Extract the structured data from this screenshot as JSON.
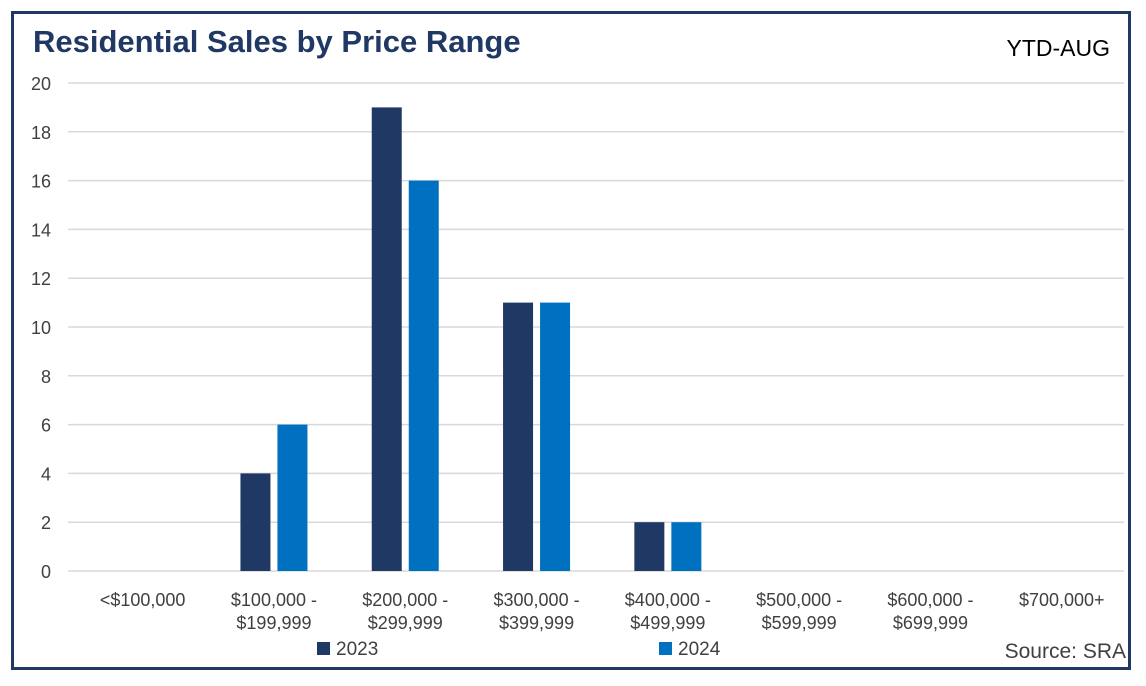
{
  "header": {
    "title": "Residential Sales by Price Range",
    "badge": "YTD-AUG"
  },
  "footer": {
    "source": "Source: SRA"
  },
  "colors": {
    "series_2023": "#1f3864",
    "series_2024": "#0070c0",
    "grid": "#d9d9d9",
    "frame": "#1f3864"
  },
  "chart_data": {
    "type": "bar",
    "title": "Residential Sales by Price Range",
    "subtitle": "YTD-AUG",
    "categories": [
      [
        "<$100,000"
      ],
      [
        "$100,000 -",
        "$199,999"
      ],
      [
        "$200,000 -",
        "$299,999"
      ],
      [
        "$300,000 -",
        "$399,999"
      ],
      [
        "$400,000 -",
        "$499,999"
      ],
      [
        "$500,000 -",
        "$599,999"
      ],
      [
        "$600,000 -",
        "$699,999"
      ],
      [
        "$700,000+"
      ]
    ],
    "series": [
      {
        "name": "2023",
        "values": [
          0,
          4,
          19,
          11,
          2,
          0,
          0,
          0
        ]
      },
      {
        "name": "2024",
        "values": [
          0,
          6,
          16,
          11,
          2,
          0,
          0,
          0
        ]
      }
    ],
    "ylim": [
      0,
      20
    ],
    "yticks": [
      0,
      2,
      4,
      6,
      8,
      10,
      12,
      14,
      16,
      18,
      20
    ],
    "grid": true,
    "legend": "bottom-center"
  }
}
